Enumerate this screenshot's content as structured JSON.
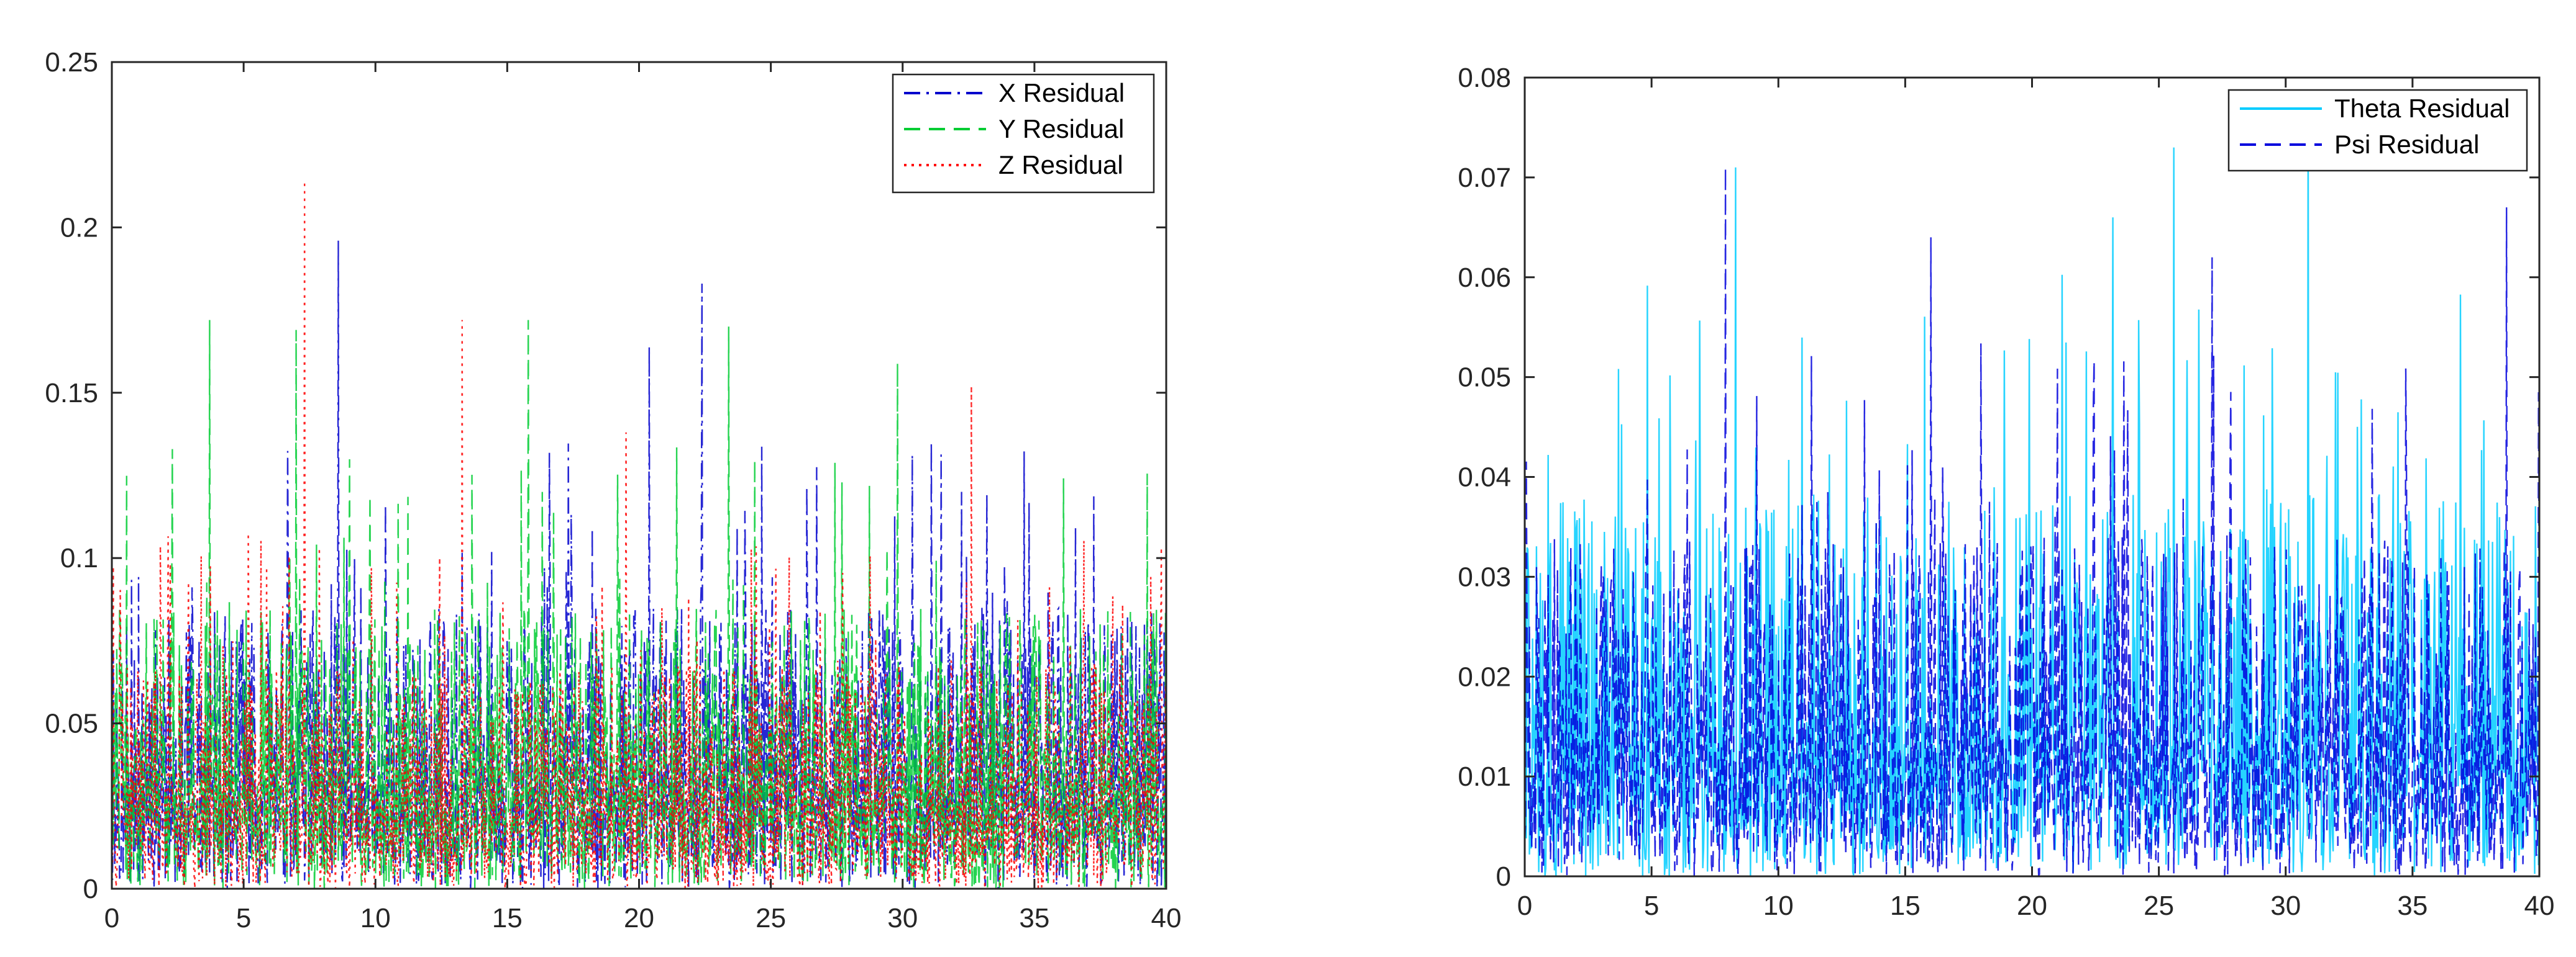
{
  "chart_data": [
    {
      "type": "line",
      "title": "",
      "xlabel": "",
      "ylabel": "",
      "xlim": [
        0,
        40
      ],
      "ylim": [
        0,
        0.25
      ],
      "xticks": [
        0,
        5,
        10,
        15,
        20,
        25,
        30,
        35,
        40
      ],
      "yticks": [
        0,
        0.05,
        0.1,
        0.15,
        0.2,
        0.25
      ],
      "xtick_labels": [
        "0",
        "5",
        "10",
        "15",
        "20",
        "25",
        "30",
        "35",
        "40"
      ],
      "ytick_labels": [
        "0",
        "0.05",
        "0.1",
        "0.15",
        "0.2",
        "0.25"
      ],
      "grid": false,
      "legend_position": "top-right",
      "series": [
        {
          "name": "X Residual",
          "color": "#0000cc",
          "style": "dash-dot",
          "typical_range": [
            0,
            0.1
          ],
          "peaks": [
            {
              "x": 8.6,
              "y": 0.196
            },
            {
              "x": 22.4,
              "y": 0.183
            },
            {
              "x": 20.4,
              "y": 0.164
            },
            {
              "x": 31.1,
              "y": 0.135
            }
          ]
        },
        {
          "name": "Y Residual",
          "color": "#00cc33",
          "style": "dashed",
          "typical_range": [
            0,
            0.1
          ],
          "peaks": [
            {
              "x": 3.7,
              "y": 0.172
            },
            {
              "x": 7.0,
              "y": 0.169
            },
            {
              "x": 15.8,
              "y": 0.172
            },
            {
              "x": 23.4,
              "y": 0.17
            },
            {
              "x": 29.8,
              "y": 0.159
            }
          ]
        },
        {
          "name": "Z Residual",
          "color": "#ff0000",
          "style": "dotted",
          "typical_range": [
            0,
            0.08
          ],
          "peaks": [
            {
              "x": 7.3,
              "y": 0.214
            },
            {
              "x": 13.3,
              "y": 0.172
            },
            {
              "x": 19.5,
              "y": 0.138
            },
            {
              "x": 32.6,
              "y": 0.152
            }
          ]
        }
      ]
    },
    {
      "type": "line",
      "title": "",
      "xlabel": "",
      "ylabel": "",
      "xlim": [
        0,
        40
      ],
      "ylim": [
        0,
        0.08
      ],
      "xticks": [
        0,
        5,
        10,
        15,
        20,
        25,
        30,
        35,
        40
      ],
      "yticks": [
        0,
        0.01,
        0.02,
        0.03,
        0.04,
        0.05,
        0.06,
        0.07,
        0.08
      ],
      "xtick_labels": [
        "0",
        "5",
        "10",
        "15",
        "20",
        "25",
        "30",
        "35",
        "40"
      ],
      "ytick_labels": [
        "0",
        "0.01",
        "0.02",
        "0.03",
        "0.04",
        "0.05",
        "0.06",
        "0.07",
        "0.08"
      ],
      "grid": false,
      "legend_position": "top-right",
      "series": [
        {
          "name": "Theta Residual",
          "color": "#00ccff",
          "style": "solid",
          "typical_range": [
            0,
            0.045
          ],
          "peaks": [
            {
              "x": 8.3,
              "y": 0.071
            },
            {
              "x": 25.6,
              "y": 0.073
            },
            {
              "x": 30.9,
              "y": 0.078
            },
            {
              "x": 23.2,
              "y": 0.066
            }
          ]
        },
        {
          "name": "Psi Residual",
          "color": "#0000dd",
          "style": "dashed",
          "typical_range": [
            0,
            0.04
          ],
          "peaks": [
            {
              "x": 7.9,
              "y": 0.071
            },
            {
              "x": 16.0,
              "y": 0.064
            },
            {
              "x": 27.1,
              "y": 0.062
            },
            {
              "x": 38.7,
              "y": 0.067
            }
          ]
        }
      ]
    }
  ]
}
